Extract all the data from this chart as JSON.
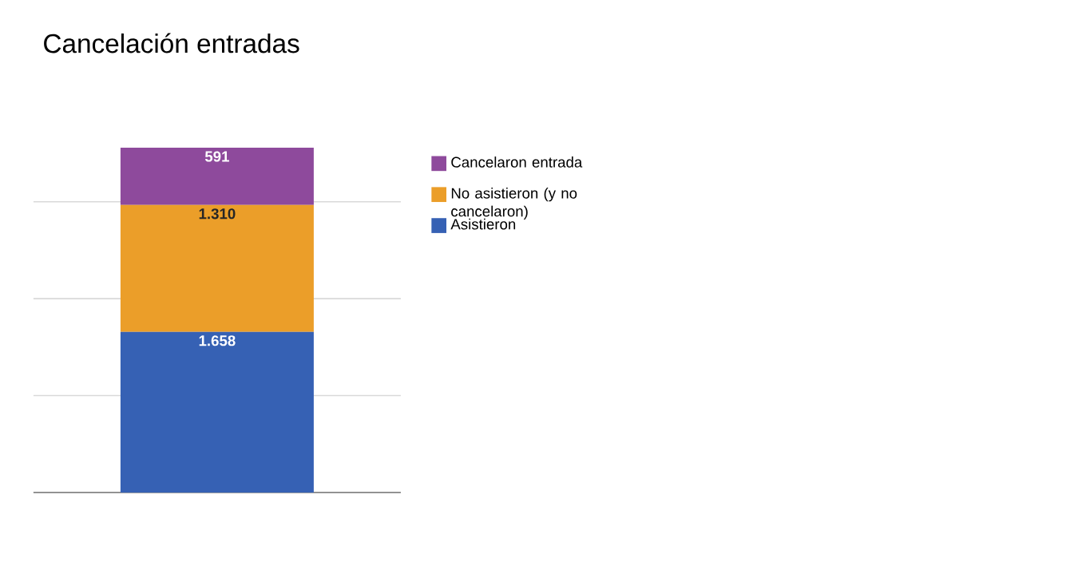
{
  "chart_data": {
    "type": "bar",
    "title": "Cancelación entradas",
    "categories": [
      null
    ],
    "stacked": true,
    "series": [
      {
        "name": "Asistieron",
        "color": "#3661b4",
        "values": [
          1658
        ],
        "value_labels": [
          "1.658"
        ]
      },
      {
        "name": "No asistieron (y no cancelaron)",
        "color": "#eb9e29",
        "values": [
          1310
        ],
        "value_labels": [
          "1.310"
        ]
      },
      {
        "name": "Cancelaron entrada",
        "color": "#8e4a9c",
        "values": [
          591
        ],
        "value_labels": [
          "591"
        ]
      }
    ],
    "grid": "y",
    "legend": "right",
    "tick_labels": false
  }
}
